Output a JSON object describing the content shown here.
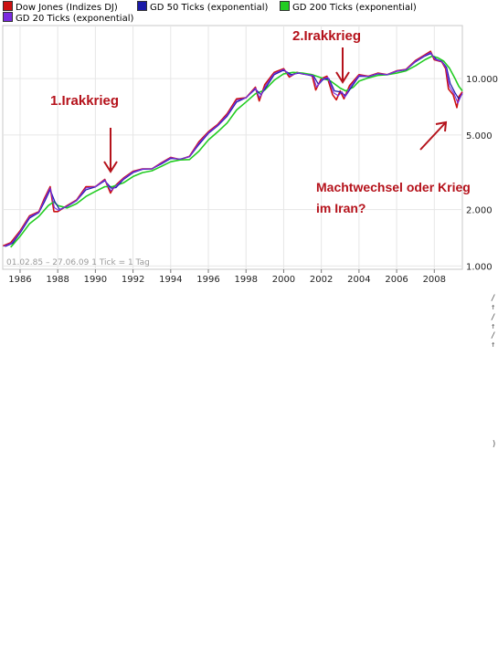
{
  "legend": [
    {
      "label": "Dow Jones (Indizes DJ)",
      "color": "#cc1111"
    },
    {
      "label": "GD 50 Ticks (exponential)",
      "color": "#1a1aa8"
    },
    {
      "label": "GD 200 Ticks (exponential)",
      "color": "#22cc22"
    },
    {
      "label": "GD 20 Ticks (exponential)",
      "color": "#7a2be0"
    }
  ],
  "period_label": "01.02.85 – 27.06.09   1 Tick = 1 Tag",
  "annotations": {
    "irak1": "1.Irakkrieg",
    "irak2": "2.Irakkrieg",
    "iran_line1": "Machtwechsel oder Krieg",
    "iran_line2": "im Iran?",
    "color": "#b5121b"
  },
  "stray_glyphs": [
    "/↑",
    "/↑",
    "/↑",
    ")"
  ],
  "chart_data": {
    "type": "line",
    "scale": "log",
    "x_tick_labels": [
      "1986",
      "1988",
      "1990",
      "1992",
      "1994",
      "1996",
      "1998",
      "2000",
      "2002",
      "2004",
      "2006",
      "2008"
    ],
    "y_tick_labels": [
      {
        "value": 10000,
        "label": "10.000"
      },
      {
        "value": 5000,
        "label": "5.000"
      },
      {
        "value": 2000,
        "label": "2.000"
      },
      {
        "value": 1000,
        "label": "1.000"
      }
    ],
    "xlim": [
      1985.08,
      2009.49
    ],
    "ylim": [
      960,
      19200
    ],
    "grid": true,
    "series": [
      {
        "name": "Dow Jones (Indizes DJ)",
        "color": "#cc1111",
        "points": [
          [
            1985.1,
            1280
          ],
          [
            1985.5,
            1330
          ],
          [
            1986.0,
            1540
          ],
          [
            1986.5,
            1850
          ],
          [
            1987.0,
            1950
          ],
          [
            1987.3,
            2300
          ],
          [
            1987.6,
            2650
          ],
          [
            1987.8,
            1950
          ],
          [
            1988.0,
            1950
          ],
          [
            1988.5,
            2100
          ],
          [
            1989.0,
            2250
          ],
          [
            1989.5,
            2650
          ],
          [
            1990.0,
            2650
          ],
          [
            1990.5,
            2900
          ],
          [
            1990.8,
            2450
          ],
          [
            1991.0,
            2650
          ],
          [
            1991.5,
            2950
          ],
          [
            1992.0,
            3200
          ],
          [
            1992.5,
            3300
          ],
          [
            1993.0,
            3300
          ],
          [
            1993.5,
            3550
          ],
          [
            1994.0,
            3800
          ],
          [
            1994.5,
            3700
          ],
          [
            1995.0,
            3850
          ],
          [
            1995.5,
            4600
          ],
          [
            1996.0,
            5200
          ],
          [
            1996.5,
            5700
          ],
          [
            1997.0,
            6500
          ],
          [
            1997.5,
            7800
          ],
          [
            1998.0,
            7900
          ],
          [
            1998.5,
            9000
          ],
          [
            1998.7,
            7600
          ],
          [
            1999.0,
            9300
          ],
          [
            1999.5,
            10800
          ],
          [
            2000.0,
            11300
          ],
          [
            2000.3,
            10200
          ],
          [
            2000.7,
            10800
          ],
          [
            2001.0,
            10600
          ],
          [
            2001.5,
            10500
          ],
          [
            2001.7,
            8700
          ],
          [
            2002.0,
            10000
          ],
          [
            2002.3,
            10300
          ],
          [
            2002.6,
            8200
          ],
          [
            2002.8,
            7700
          ],
          [
            2003.0,
            8600
          ],
          [
            2003.2,
            7800
          ],
          [
            2003.5,
            9200
          ],
          [
            2004.0,
            10500
          ],
          [
            2004.5,
            10300
          ],
          [
            2005.0,
            10700
          ],
          [
            2005.5,
            10500
          ],
          [
            2006.0,
            11000
          ],
          [
            2006.5,
            11200
          ],
          [
            2007.0,
            12500
          ],
          [
            2007.5,
            13400
          ],
          [
            2007.8,
            14000
          ],
          [
            2008.0,
            12600
          ],
          [
            2008.4,
            12300
          ],
          [
            2008.6,
            11300
          ],
          [
            2008.75,
            8800
          ],
          [
            2009.0,
            8200
          ],
          [
            2009.2,
            7000
          ],
          [
            2009.3,
            8000
          ],
          [
            2009.49,
            8500
          ]
        ]
      },
      {
        "name": "GD 200 Ticks (exponential)",
        "color": "#22cc22",
        "points": [
          [
            1985.5,
            1260
          ],
          [
            1986.0,
            1440
          ],
          [
            1986.5,
            1680
          ],
          [
            1987.0,
            1840
          ],
          [
            1987.5,
            2100
          ],
          [
            1987.8,
            2200
          ],
          [
            1988.0,
            2100
          ],
          [
            1988.5,
            2040
          ],
          [
            1989.0,
            2150
          ],
          [
            1989.5,
            2350
          ],
          [
            1990.0,
            2500
          ],
          [
            1990.5,
            2650
          ],
          [
            1990.9,
            2650
          ],
          [
            1991.5,
            2780
          ],
          [
            1992.0,
            3000
          ],
          [
            1992.5,
            3150
          ],
          [
            1993.0,
            3220
          ],
          [
            1993.5,
            3400
          ],
          [
            1994.0,
            3600
          ],
          [
            1994.5,
            3680
          ],
          [
            1995.0,
            3700
          ],
          [
            1995.5,
            4100
          ],
          [
            1996.0,
            4700
          ],
          [
            1996.5,
            5200
          ],
          [
            1997.0,
            5800
          ],
          [
            1997.5,
            6800
          ],
          [
            1998.0,
            7500
          ],
          [
            1998.5,
            8300
          ],
          [
            1999.0,
            8700
          ],
          [
            1999.5,
            9800
          ],
          [
            2000.0,
            10600
          ],
          [
            2000.5,
            10800
          ],
          [
            2001.0,
            10700
          ],
          [
            2001.5,
            10500
          ],
          [
            2002.0,
            10100
          ],
          [
            2002.5,
            9700
          ],
          [
            2003.0,
            8900
          ],
          [
            2003.3,
            8600
          ],
          [
            2003.7,
            9000
          ],
          [
            2004.0,
            9700
          ],
          [
            2004.5,
            10100
          ],
          [
            2005.0,
            10400
          ],
          [
            2005.5,
            10500
          ],
          [
            2006.0,
            10700
          ],
          [
            2006.5,
            11000
          ],
          [
            2007.0,
            11700
          ],
          [
            2007.5,
            12600
          ],
          [
            2007.9,
            13200
          ],
          [
            2008.2,
            12900
          ],
          [
            2008.5,
            12400
          ],
          [
            2008.8,
            11400
          ],
          [
            2009.1,
            10000
          ],
          [
            2009.3,
            9100
          ],
          [
            2009.49,
            8600
          ]
        ]
      },
      {
        "name": "GD 50 Ticks (exponential)",
        "color": "#1a1aa8",
        "points": [
          [
            1985.2,
            1270
          ],
          [
            1985.6,
            1320
          ],
          [
            1986.0,
            1500
          ],
          [
            1986.5,
            1800
          ],
          [
            1987.0,
            1930
          ],
          [
            1987.3,
            2200
          ],
          [
            1987.6,
            2550
          ],
          [
            1987.85,
            2200
          ],
          [
            1988.1,
            2000
          ],
          [
            1988.5,
            2080
          ],
          [
            1989.0,
            2230
          ],
          [
            1989.5,
            2550
          ],
          [
            1990.0,
            2640
          ],
          [
            1990.5,
            2850
          ],
          [
            1990.85,
            2600
          ],
          [
            1991.1,
            2620
          ],
          [
            1991.5,
            2900
          ],
          [
            1992.0,
            3150
          ],
          [
            1992.5,
            3280
          ],
          [
            1993.0,
            3300
          ],
          [
            1993.5,
            3500
          ],
          [
            1994.0,
            3750
          ],
          [
            1994.5,
            3720
          ],
          [
            1995.0,
            3830
          ],
          [
            1995.5,
            4450
          ],
          [
            1996.0,
            5100
          ],
          [
            1996.5,
            5600
          ],
          [
            1997.0,
            6300
          ],
          [
            1997.5,
            7500
          ],
          [
            1998.0,
            7900
          ],
          [
            1998.5,
            8800
          ],
          [
            1998.8,
            8200
          ],
          [
            1999.1,
            9100
          ],
          [
            1999.5,
            10500
          ],
          [
            2000.0,
            11100
          ],
          [
            2000.4,
            10500
          ],
          [
            2000.8,
            10700
          ],
          [
            2001.2,
            10500
          ],
          [
            2001.6,
            10300
          ],
          [
            2001.85,
            9300
          ],
          [
            2002.1,
            9900
          ],
          [
            2002.4,
            10000
          ],
          [
            2002.7,
            8600
          ],
          [
            2003.0,
            8500
          ],
          [
            2003.3,
            8100
          ],
          [
            2003.6,
            9000
          ],
          [
            2004.0,
            10300
          ],
          [
            2004.5,
            10250
          ],
          [
            2005.0,
            10600
          ],
          [
            2005.5,
            10500
          ],
          [
            2006.0,
            10950
          ],
          [
            2006.5,
            11150
          ],
          [
            2007.0,
            12300
          ],
          [
            2007.5,
            13200
          ],
          [
            2007.8,
            13600
          ],
          [
            2008.1,
            12700
          ],
          [
            2008.4,
            12350
          ],
          [
            2008.65,
            11500
          ],
          [
            2008.85,
            9400
          ],
          [
            2009.1,
            8400
          ],
          [
            2009.3,
            7800
          ],
          [
            2009.49,
            8300
          ]
        ]
      },
      {
        "name": "GD 20 Ticks (exponential)",
        "color": "#7a2be0",
        "points": [
          [
            1985.15,
            1275
          ],
          [
            1985.55,
            1325
          ],
          [
            1986.0,
            1520
          ],
          [
            1986.5,
            1830
          ],
          [
            1987.0,
            1940
          ],
          [
            1987.3,
            2260
          ],
          [
            1987.6,
            2610
          ],
          [
            1987.82,
            2050
          ],
          [
            1988.05,
            1980
          ],
          [
            1988.5,
            2090
          ],
          [
            1989.0,
            2240
          ],
          [
            1989.5,
            2610
          ],
          [
            1990.0,
            2650
          ],
          [
            1990.5,
            2880
          ],
          [
            1990.82,
            2520
          ],
          [
            1991.05,
            2640
          ],
          [
            1991.5,
            2930
          ],
          [
            1992.0,
            3180
          ],
          [
            1992.5,
            3290
          ],
          [
            1993.0,
            3300
          ],
          [
            1993.5,
            3530
          ],
          [
            1994.0,
            3780
          ],
          [
            1994.5,
            3710
          ],
          [
            1995.0,
            3840
          ],
          [
            1995.5,
            4530
          ],
          [
            1996.0,
            5150
          ],
          [
            1996.5,
            5650
          ],
          [
            1997.0,
            6400
          ],
          [
            1997.5,
            7650
          ],
          [
            1998.0,
            7900
          ],
          [
            1998.5,
            8900
          ],
          [
            1998.72,
            7900
          ],
          [
            1999.05,
            9200
          ],
          [
            1999.5,
            10650
          ],
          [
            2000.0,
            11200
          ],
          [
            2000.35,
            10350
          ],
          [
            2000.75,
            10750
          ],
          [
            2001.1,
            10550
          ],
          [
            2001.55,
            10400
          ],
          [
            2001.75,
            9000
          ],
          [
            2002.05,
            9950
          ],
          [
            2002.35,
            10150
          ],
          [
            2002.65,
            8400
          ],
          [
            2002.9,
            8100
          ],
          [
            2003.1,
            8500
          ],
          [
            2003.25,
            7950
          ],
          [
            2003.55,
            9100
          ],
          [
            2004.0,
            10400
          ],
          [
            2004.5,
            10280
          ],
          [
            2005.0,
            10650
          ],
          [
            2005.5,
            10500
          ],
          [
            2006.0,
            10980
          ],
          [
            2006.5,
            11180
          ],
          [
            2007.0,
            12400
          ],
          [
            2007.5,
            13300
          ],
          [
            2007.8,
            13800
          ],
          [
            2008.05,
            12650
          ],
          [
            2008.4,
            12320
          ],
          [
            2008.62,
            11400
          ],
          [
            2008.8,
            9100
          ],
          [
            2009.05,
            8300
          ],
          [
            2009.25,
            7400
          ],
          [
            2009.49,
            8400
          ]
        ]
      }
    ]
  }
}
